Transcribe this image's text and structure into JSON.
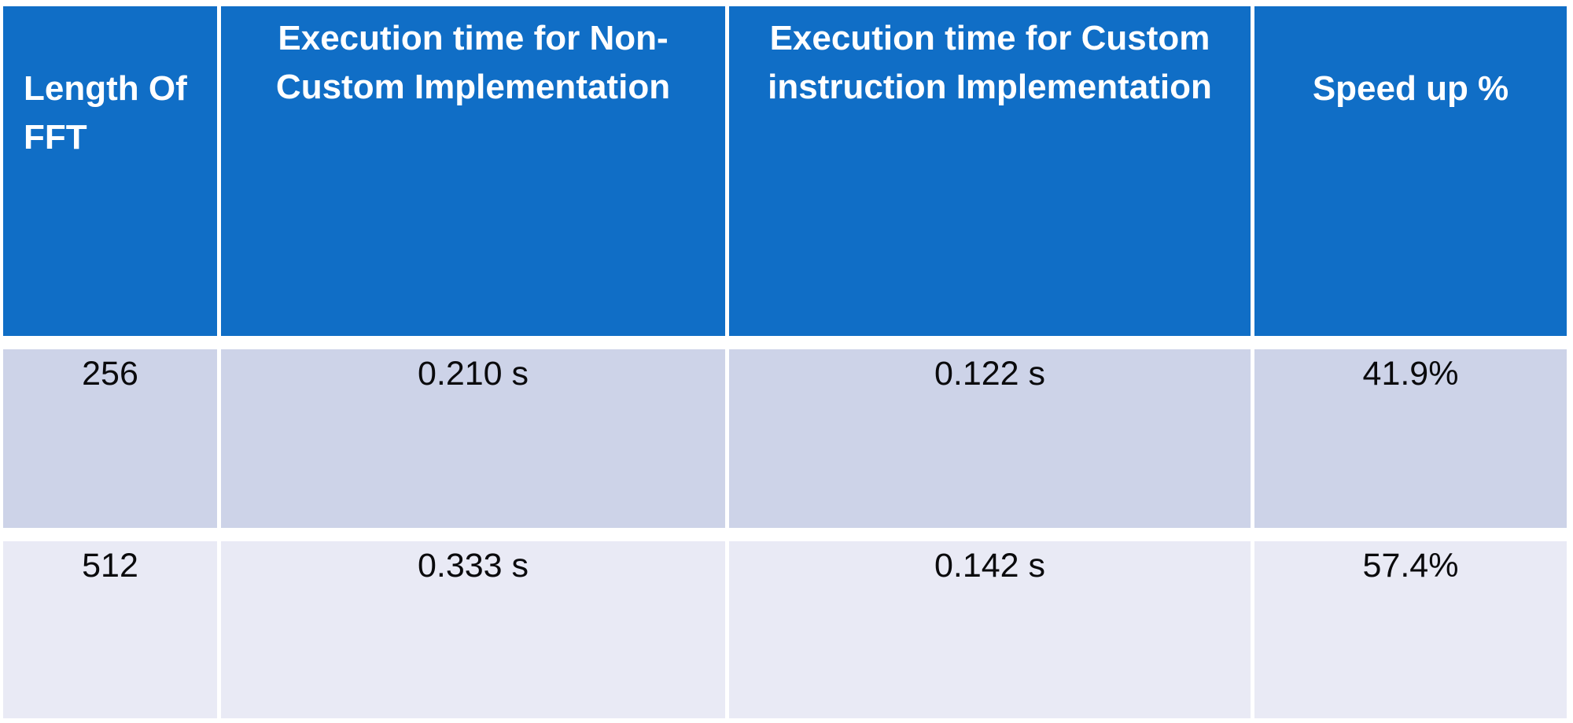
{
  "chart_data": {
    "type": "table",
    "columns": [
      "Length Of FFT",
      "Execution time for Non-Custom Implementation",
      "Execution time for Custom instruction Implementation",
      "Speed up %"
    ],
    "rows": [
      [
        "256",
        "0.210 s",
        "0.122 s",
        "41.9%"
      ],
      [
        "512",
        "0.333 s",
        "0.142 s",
        "57.4%"
      ]
    ],
    "numeric": {
      "fft_length": [
        256,
        512
      ],
      "non_custom_execution_time_s": [
        0.21,
        0.333
      ],
      "custom_instruction_execution_time_s": [
        0.122,
        0.142
      ],
      "speed_up_percent": [
        41.9,
        57.4
      ]
    }
  },
  "table": {
    "header": {
      "col1": "Length Of\nFFT",
      "col2": "Execution time for Non-\nCustom Implementation",
      "col3": "Execution time for Custom\ninstruction Implementation",
      "col4": "Speed up %"
    },
    "rows": [
      {
        "cells": [
          "256",
          "0.210 s",
          "0.122 s",
          "41.9%"
        ]
      },
      {
        "cells": [
          "512",
          "0.333 s",
          "0.142 s",
          "57.4%"
        ]
      }
    ],
    "colors": {
      "header_bg": "#106EC6",
      "header_text": "#FFFFFF",
      "row_odd_bg": "#CDD3E8",
      "row_even_bg": "#E9EAF5",
      "grid_line": "#FFFFFF",
      "body_text": "#0A0A0C"
    }
  }
}
